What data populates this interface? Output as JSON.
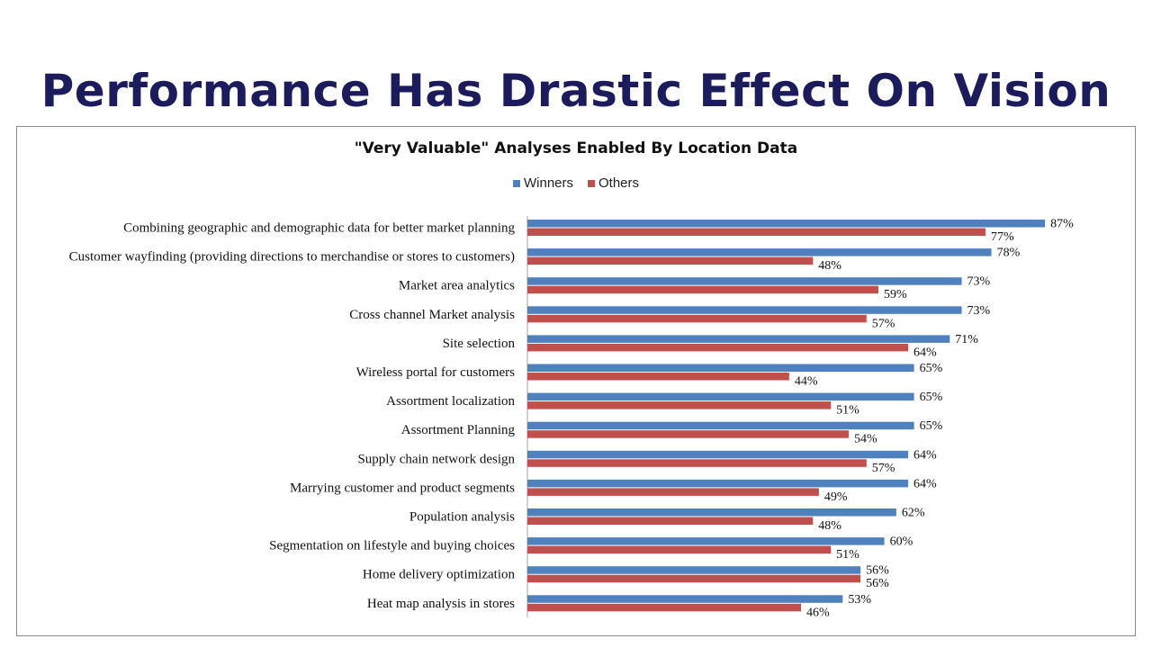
{
  "slide": {
    "title": "Performance Has Drastic Effect On Vision"
  },
  "colors": {
    "winners": "#4f81bd",
    "others": "#c0504d",
    "title": "#1c1c5c"
  },
  "chart_data": {
    "type": "bar",
    "orientation": "horizontal",
    "title": "\"Very Valuable\" Analyses Enabled By Location Data",
    "xlabel": "",
    "ylabel": "",
    "xlim": [
      0,
      100
    ],
    "grid": false,
    "legend_position": "top",
    "categories": [
      "Combining geographic and demographic data for better market planning",
      "Customer wayfinding (providing directions to merchandise or stores to customers)",
      "Market area analytics",
      "Cross channel Market analysis",
      "Site selection",
      "Wireless portal for customers",
      "Assortment localization",
      "Assortment Planning",
      "Supply chain network design",
      "Marrying customer and product segments",
      "Population analysis",
      "Segmentation on lifestyle and buying choices",
      "Home delivery optimization",
      "Heat map analysis in stores"
    ],
    "series": [
      {
        "name": "Winners",
        "values": [
          87,
          78,
          73,
          73,
          71,
          65,
          65,
          65,
          64,
          64,
          62,
          60,
          56,
          53
        ],
        "labels": [
          "87%",
          "78%",
          "73%",
          "73%",
          "71%",
          "65%",
          "65%",
          "65%",
          "64%",
          "64%",
          "62%",
          "60%",
          "56%",
          "53%"
        ]
      },
      {
        "name": "Others",
        "values": [
          77,
          48,
          59,
          57,
          64,
          44,
          51,
          54,
          57,
          49,
          48,
          51,
          56,
          46
        ],
        "labels": [
          "77%",
          "48%",
          "59%",
          "57%",
          "64%",
          "44%",
          "51%",
          "54%",
          "57%",
          "49%",
          "48%",
          "51%",
          "56%",
          "46%"
        ]
      }
    ]
  }
}
